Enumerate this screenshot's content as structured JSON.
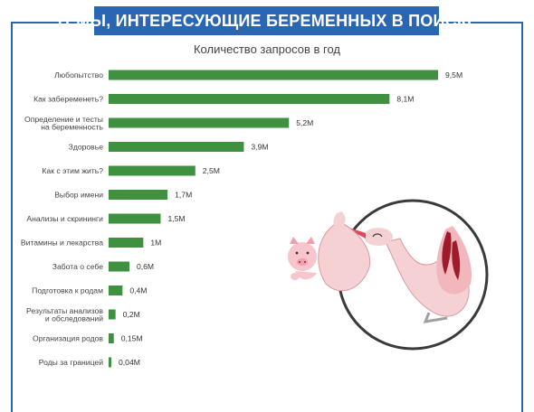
{
  "banner": {
    "title": "ТЕМЫ, ИНТЕРЕСУЮЩИЕ БЕРЕМЕННЫХ В ПОИСКЕ"
  },
  "chart_data": {
    "type": "bar",
    "orientation": "horizontal",
    "title": "Количество запросов в год",
    "xlabel": "",
    "ylabel": "",
    "xlim": [
      0,
      9.5
    ],
    "grid": false,
    "bar_color": "#3f9140",
    "categories": [
      [
        "Любопытство"
      ],
      [
        "Как забеременеть?"
      ],
      [
        "Определение и тесты",
        "на беременность"
      ],
      [
        "Здоровье"
      ],
      [
        "Как с этим жить?"
      ],
      [
        "Выбор имени"
      ],
      [
        "Анализы и скрининги"
      ],
      [
        "Витамины и лекарства"
      ],
      [
        "Забота о себе"
      ],
      [
        "Подготовка к родам"
      ],
      [
        "Результаты анализов",
        "и обследований"
      ],
      [
        "Организация родов"
      ],
      [
        "Роды за границей"
      ]
    ],
    "values": [
      9.5,
      8.1,
      5.2,
      3.9,
      2.5,
      1.7,
      1.5,
      1.0,
      0.6,
      0.4,
      0.2,
      0.15,
      0.04
    ],
    "value_labels": [
      "9,5M",
      "8,1M",
      "5,2M",
      "3,9M",
      "2,5M",
      "1,7M",
      "1,5M",
      "1M",
      "0,6M",
      "0,4M",
      "0,2M",
      "0,15M",
      "0,04M"
    ]
  },
  "colors": {
    "frame": "#2a66b3",
    "bar": "#3f9140",
    "illustration_pink": "#f2c4c8",
    "illustration_red": "#9e1b2b"
  },
  "illustration": {
    "icon": "stork-carrying-piglet-icon"
  }
}
